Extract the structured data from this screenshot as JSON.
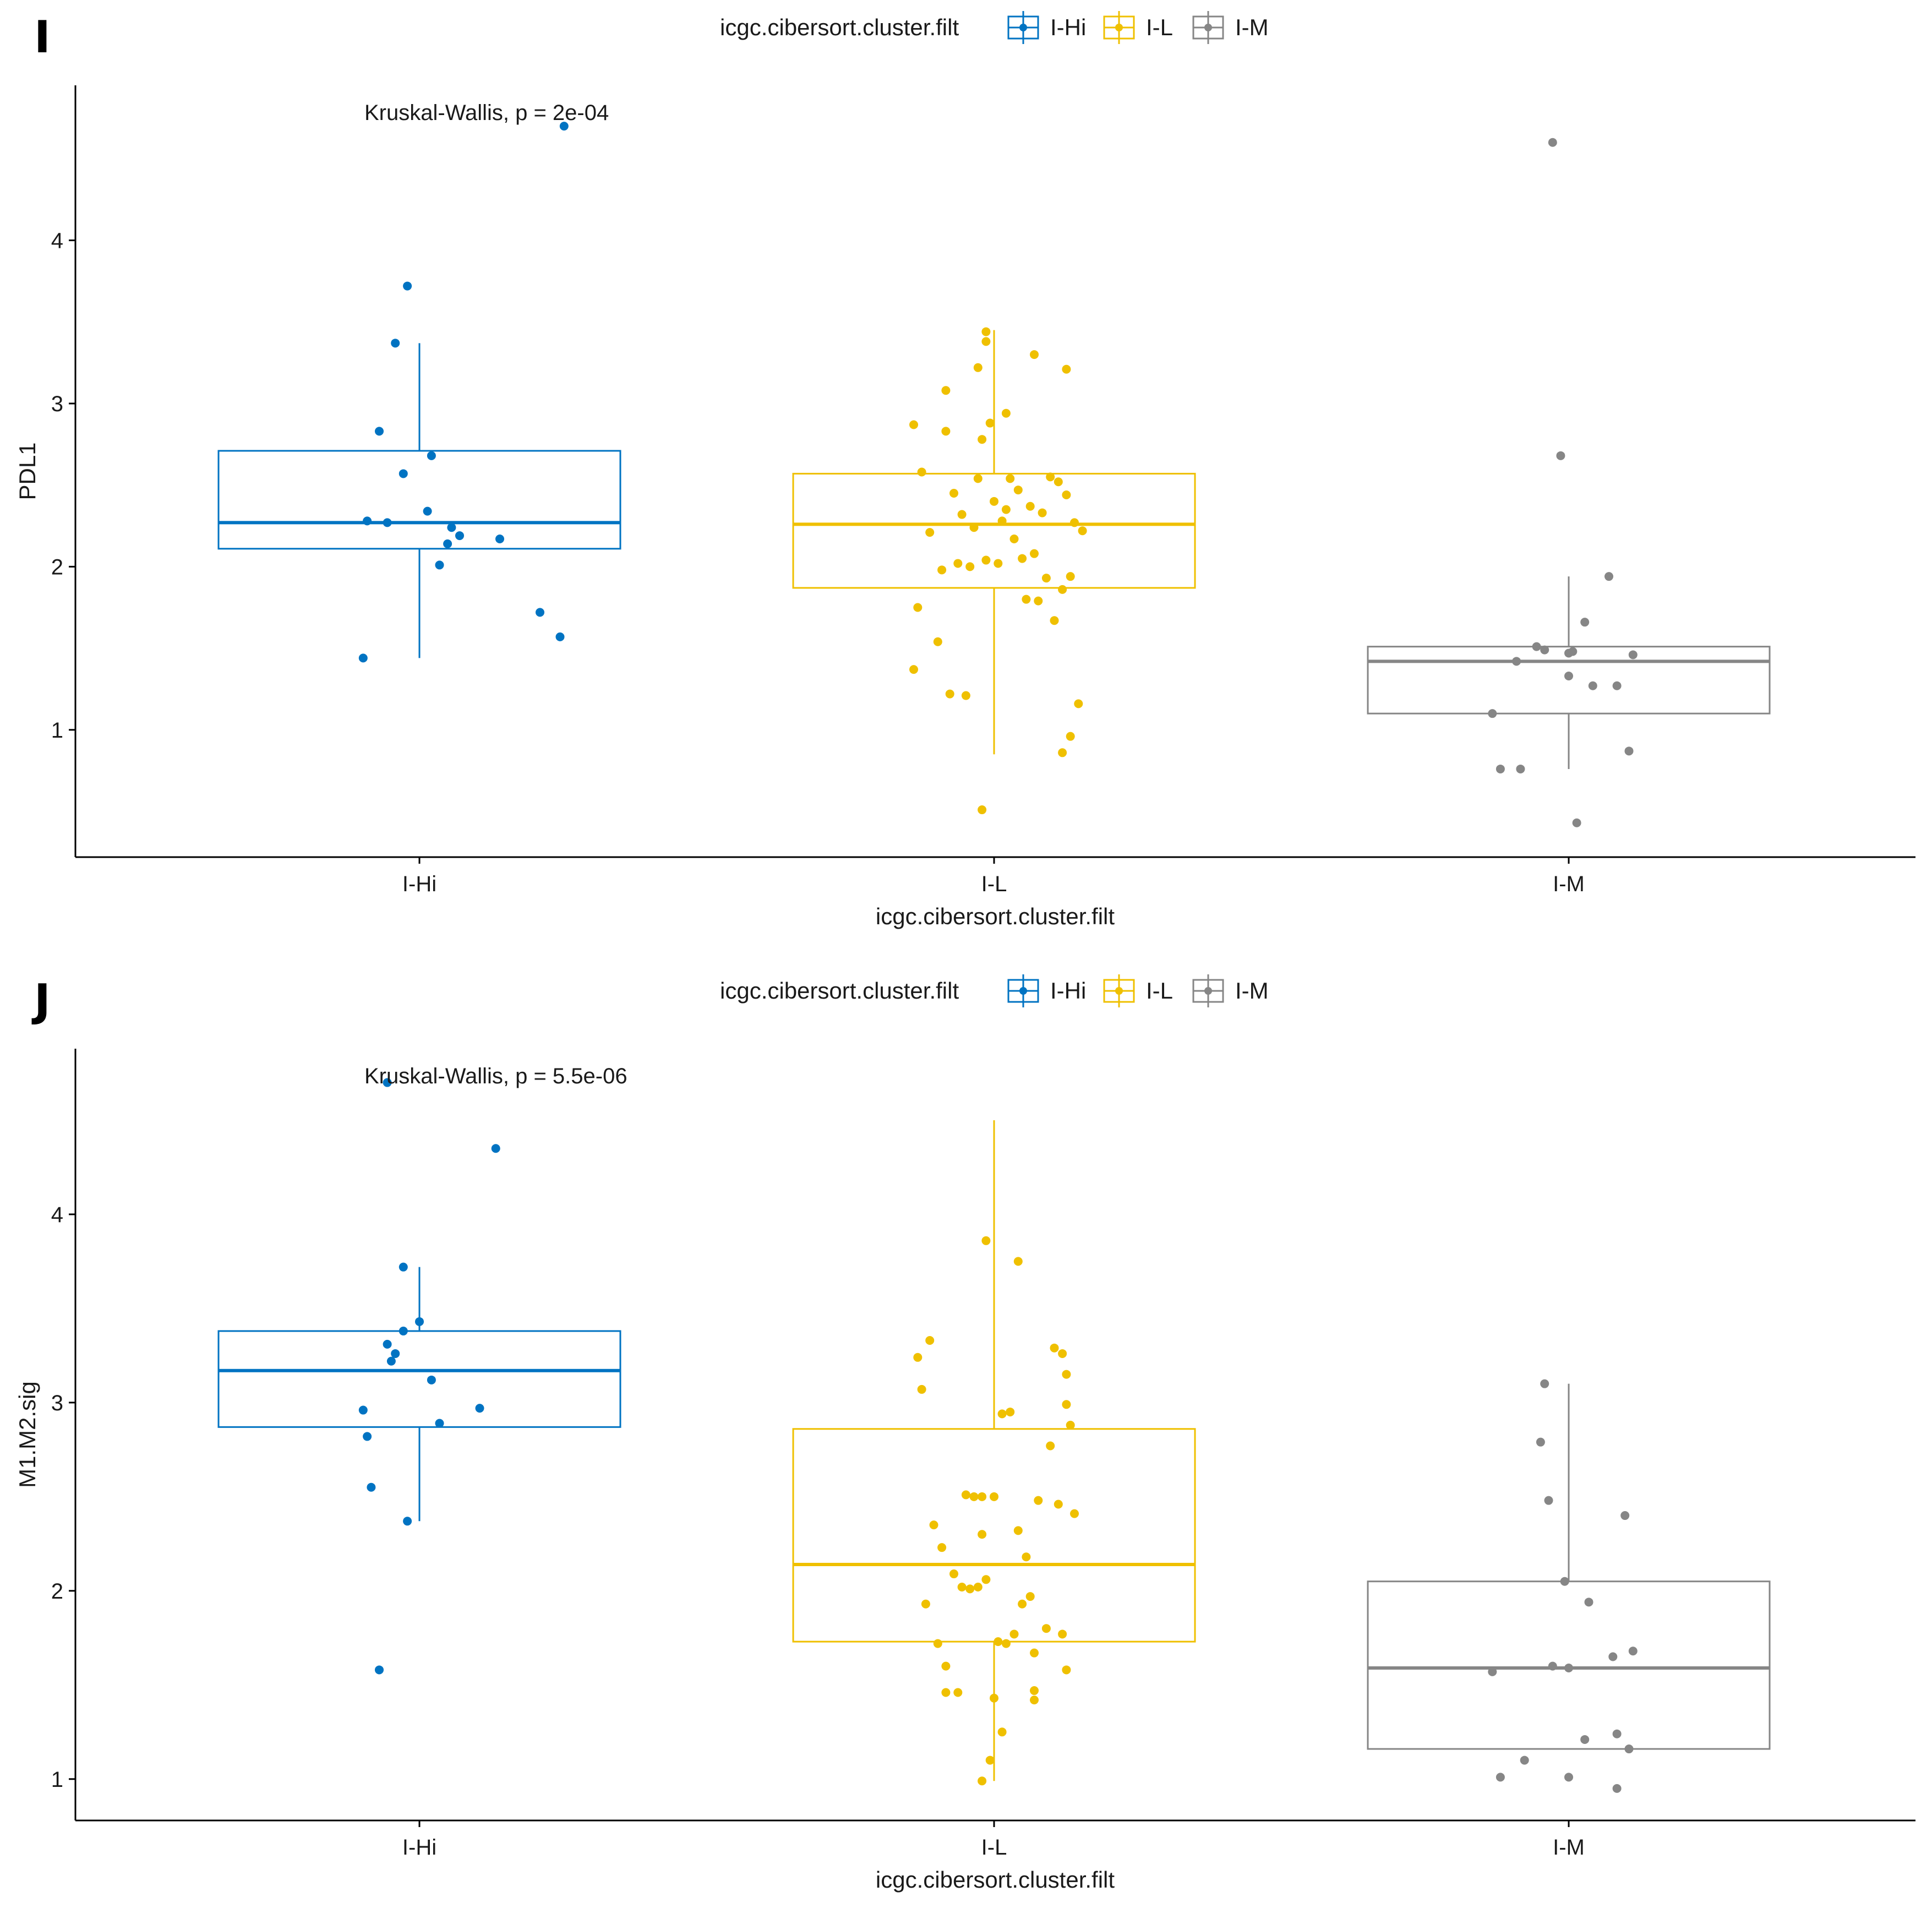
{
  "colors": {
    "I-Hi": "#0073C2",
    "I-L": "#EFC000",
    "I-M": "#868686",
    "axis": "#000000"
  },
  "chart_data": [
    {
      "type": "box",
      "panel": "I",
      "legend_title": "icgc.cibersort.cluster.filt",
      "legend": [
        "I-Hi",
        "I-L",
        "I-M"
      ],
      "annotation": "Kruskal-Wallis, p = 2e-04",
      "xlabel": "icgc.cibersort.cluster.filt",
      "ylabel": "PDL1",
      "categories": [
        "I-Hi",
        "I-L",
        "I-M"
      ],
      "ylim": [
        0.22,
        4.95
      ],
      "yticks": [
        1,
        2,
        3,
        4
      ],
      "boxes": [
        {
          "group": "I-Hi",
          "lower_whisker": 1.44,
          "q1": 2.11,
          "median": 2.27,
          "q3": 2.71,
          "upper_whisker": 3.37
        },
        {
          "group": "I-L",
          "lower_whisker": 0.85,
          "q1": 1.87,
          "median": 2.26,
          "q3": 2.57,
          "upper_whisker": 3.45
        },
        {
          "group": "I-M",
          "lower_whisker": 0.76,
          "q1": 1.1,
          "median": 1.42,
          "q3": 1.51,
          "upper_whisker": 1.94
        }
      ],
      "points": [
        {
          "group": "I-Hi",
          "x": [
            -0.1,
            -0.08,
            -0.06,
            -0.04,
            -0.03,
            0.02,
            0.03,
            0.05,
            0.07,
            0.08,
            0.1,
            0.2,
            0.3,
            0.35,
            -0.14,
            -0.13,
            0.36
          ],
          "y": [
            2.83,
            2.27,
            3.37,
            2.57,
            3.72,
            2.34,
            2.68,
            2.01,
            2.14,
            2.24,
            2.19,
            2.17,
            1.72,
            1.57,
            1.44,
            2.28,
            4.7
          ]
        },
        {
          "group": "I-L",
          "x": [
            -0.2,
            -0.18,
            -0.12,
            -0.1,
            -0.08,
            -0.05,
            -0.03,
            0.0,
            0.02,
            0.04,
            0.06,
            0.09,
            0.12,
            0.14,
            0.16,
            0.18,
            0.2,
            0.22,
            -0.16,
            -0.13,
            -0.09,
            -0.06,
            -0.02,
            0.01,
            0.05,
            0.08,
            0.11,
            0.13,
            0.17,
            0.19,
            -0.19,
            -0.14,
            -0.11,
            -0.07,
            -0.04,
            -0.01,
            0.03,
            0.07,
            0.1,
            0.15,
            -0.2,
            -0.12,
            -0.04,
            0.03,
            0.1,
            0.18,
            0.17,
            0.19,
            0.21,
            -0.03,
            -0.02,
            -0.02
          ],
          "y": [
            2.87,
            2.58,
            2.83,
            2.45,
            2.32,
            2.24,
            2.78,
            2.4,
            2.28,
            2.54,
            2.47,
            2.37,
            2.33,
            2.55,
            2.52,
            2.44,
            2.27,
            2.22,
            2.21,
            1.98,
            2.02,
            2.0,
            2.04,
            2.02,
            2.17,
            1.8,
            1.79,
            1.93,
            1.86,
            1.94,
            1.75,
            1.54,
            1.22,
            1.21,
            2.54,
            2.88,
            2.35,
            2.05,
            2.08,
            1.67,
            1.37,
            3.08,
            3.22,
            2.94,
            3.3,
            3.21,
            0.86,
            0.96,
            1.16,
            0.51,
            3.44,
            3.38
          ]
        },
        {
          "group": "I-M",
          "x": [
            -0.19,
            -0.17,
            -0.12,
            -0.13,
            -0.08,
            0.0,
            0.01,
            0.06,
            0.1,
            0.12,
            0.15,
            0.16,
            -0.04,
            -0.02,
            0.0,
            0.04,
            -0.06,
            0.02
          ],
          "y": [
            1.1,
            0.76,
            0.76,
            1.42,
            1.51,
            1.33,
            1.48,
            1.27,
            1.94,
            1.27,
            0.87,
            1.46,
            4.6,
            2.68,
            1.47,
            1.66,
            1.49,
            0.43
          ]
        }
      ]
    },
    {
      "type": "box",
      "panel": "J",
      "legend_title": "icgc.cibersort.cluster.filt",
      "legend": [
        "I-Hi",
        "I-L",
        "I-M"
      ],
      "annotation": "Kruskal-Wallis, p = 5.5e-06",
      "xlabel": "icgc.cibersort.cluster.filt",
      "ylabel": "M1.M2.sig",
      "categories": [
        "I-Hi",
        "I-L",
        "I-M"
      ],
      "ylim": [
        0.78,
        4.88
      ],
      "yticks": [
        1,
        2,
        3,
        4
      ],
      "boxes": [
        {
          "group": "I-Hi",
          "lower_whisker": 2.37,
          "q1": 2.87,
          "median": 3.17,
          "q3": 3.38,
          "upper_whisker": 3.72
        },
        {
          "group": "I-L",
          "lower_whisker": 0.99,
          "q1": 1.73,
          "median": 2.14,
          "q3": 2.86,
          "upper_whisker": 4.5
        },
        {
          "group": "I-M",
          "lower_whisker": 1.16,
          "q1": 1.16,
          "median": 1.59,
          "q3": 2.05,
          "upper_whisker": 3.1
        }
      ],
      "points": [
        {
          "group": "I-Hi",
          "x": [
            -0.14,
            -0.13,
            -0.12,
            -0.08,
            -0.07,
            -0.06,
            -0.04,
            -0.04,
            -0.03,
            0.0,
            0.03,
            0.05,
            0.15,
            0.19,
            -0.1,
            -0.08
          ],
          "y": [
            2.96,
            2.82,
            2.55,
            3.31,
            3.22,
            3.26,
            3.38,
            3.72,
            2.37,
            3.43,
            3.12,
            2.89,
            2.97,
            4.35,
            1.58,
            4.7
          ]
        },
        {
          "group": "I-L",
          "x": [
            -0.18,
            -0.19,
            -0.16,
            -0.15,
            -0.13,
            -0.1,
            -0.08,
            -0.06,
            -0.04,
            -0.03,
            -0.02,
            0.01,
            0.03,
            0.05,
            0.07,
            0.09,
            0.1,
            0.14,
            0.15,
            0.17,
            0.18,
            0.19,
            -0.17,
            -0.14,
            -0.12,
            -0.09,
            -0.07,
            -0.05,
            -0.03,
            0.0,
            0.02,
            0.04,
            0.06,
            0.08,
            0.11,
            0.13,
            0.16,
            0.2,
            0.18,
            0.17,
            -0.12,
            0.0,
            0.02,
            -0.01,
            -0.03,
            0.06,
            0.1,
            0.18,
            -0.02,
            0.1
          ],
          "y": [
            3.07,
            3.24,
            3.33,
            2.35,
            2.23,
            2.09,
            2.02,
            2.01,
            2.02,
            2.3,
            2.06,
            1.73,
            1.72,
            1.77,
            1.93,
            1.97,
            1.67,
            2.77,
            3.29,
            3.26,
            2.99,
            2.88,
            1.93,
            1.72,
            1.6,
            1.46,
            2.51,
            2.5,
            2.5,
            2.5,
            2.94,
            2.95,
            2.32,
            2.18,
            2.48,
            1.8,
            2.46,
            2.41,
            3.15,
            1.77,
            1.46,
            1.43,
            1.25,
            1.1,
            0.99,
            3.75,
            1.47,
            1.58,
            3.86,
            1.42
          ]
        },
        {
          "group": "I-M",
          "x": [
            -0.19,
            -0.17,
            -0.11,
            -0.05,
            -0.01,
            0.0,
            0.05,
            0.11,
            0.14,
            0.15,
            0.16,
            -0.06,
            -0.07,
            -0.04,
            0.0,
            0.04,
            0.12,
            0.12
          ],
          "y": [
            1.57,
            1.01,
            1.1,
            2.48,
            2.05,
            1.59,
            1.94,
            1.65,
            2.4,
            1.16,
            1.68,
            3.1,
            2.79,
            1.6,
            1.01,
            1.21,
            1.24,
            0.95
          ]
        }
      ]
    }
  ]
}
